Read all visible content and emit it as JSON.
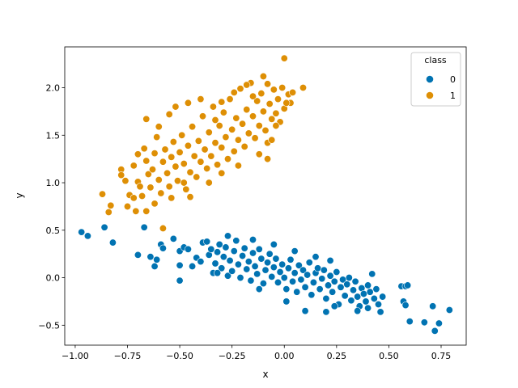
{
  "chart_data": {
    "type": "scatter",
    "title": "",
    "xlabel": "x",
    "ylabel": "y",
    "xlim": [
      -1.05,
      0.87
    ],
    "ylim": [
      -0.71,
      2.43
    ],
    "xticks": [
      -1.0,
      -0.75,
      -0.5,
      -0.25,
      0.0,
      0.25,
      0.5,
      0.75
    ],
    "xtick_labels": [
      "−1.00",
      "−0.75",
      "−0.50",
      "−0.25",
      "0.00",
      "0.25",
      "0.50",
      "0.75"
    ],
    "yticks": [
      -0.5,
      0.0,
      0.5,
      1.0,
      1.5,
      2.0
    ],
    "ytick_labels": [
      "−0.5",
      "0.0",
      "0.5",
      "1.0",
      "1.5",
      "2.0"
    ],
    "grid": false,
    "legend": {
      "title": "class",
      "placement": "upper right"
    },
    "series": [
      {
        "name": "0",
        "color": "#0173b2",
        "points": [
          [
            -0.97,
            0.48
          ],
          [
            -0.94,
            0.44
          ],
          [
            -0.82,
            0.37
          ],
          [
            -0.86,
            0.53
          ],
          [
            -0.67,
            0.53
          ],
          [
            -0.7,
            0.24
          ],
          [
            -0.64,
            0.22
          ],
          [
            -0.62,
            0.12
          ],
          [
            -0.61,
            0.19
          ],
          [
            -0.59,
            0.35
          ],
          [
            -0.58,
            0.31
          ],
          [
            -0.53,
            0.41
          ],
          [
            -0.5,
            0.28
          ],
          [
            -0.5,
            0.13
          ],
          [
            -0.5,
            -0.03
          ],
          [
            -0.48,
            0.32
          ],
          [
            -0.46,
            0.3
          ],
          [
            -0.44,
            0.12
          ],
          [
            -0.42,
            0.21
          ],
          [
            -0.4,
            0.17
          ],
          [
            -0.39,
            0.37
          ],
          [
            -0.37,
            0.38
          ],
          [
            -0.36,
            0.24
          ],
          [
            -0.35,
            0.3
          ],
          [
            -0.34,
            0.05
          ],
          [
            -0.33,
            0.15
          ],
          [
            -0.32,
            0.27
          ],
          [
            -0.31,
            0.35
          ],
          [
            -0.3,
            0.1
          ],
          [
            -0.29,
            0.22
          ],
          [
            -0.28,
            0.32
          ],
          [
            -0.27,
            0.44
          ],
          [
            -0.27,
            0.02
          ],
          [
            -0.26,
            0.18
          ],
          [
            -0.25,
            0.07
          ],
          [
            -0.24,
            0.28
          ],
          [
            -0.23,
            0.39
          ],
          [
            -0.22,
            0.14
          ],
          [
            -0.21,
            0.0
          ],
          [
            -0.2,
            0.23
          ],
          [
            -0.19,
            0.31
          ],
          [
            -0.18,
            0.09
          ],
          [
            -0.17,
            0.17
          ],
          [
            -0.16,
            -0.03
          ],
          [
            -0.15,
            0.26
          ],
          [
            -0.14,
            0.12
          ],
          [
            -0.13,
            0.04
          ],
          [
            -0.12,
            0.3
          ],
          [
            -0.11,
            0.2
          ],
          [
            -0.1,
            -0.06
          ],
          [
            -0.09,
            0.08
          ],
          [
            -0.08,
            0.16
          ],
          [
            -0.07,
            0.25
          ],
          [
            -0.06,
            0.01
          ],
          [
            -0.05,
            0.11
          ],
          [
            -0.04,
            0.2
          ],
          [
            -0.03,
            -0.05
          ],
          [
            -0.02,
            0.06
          ],
          [
            -0.01,
            0.14
          ],
          [
            0.0,
            0.0
          ],
          [
            0.01,
            -0.12
          ],
          [
            0.02,
            0.1
          ],
          [
            0.03,
            0.19
          ],
          [
            0.04,
            -0.04
          ],
          [
            0.05,
            0.05
          ],
          [
            0.06,
            -0.15
          ],
          [
            0.07,
            0.13
          ],
          [
            0.08,
            -0.02
          ],
          [
            0.09,
            0.08
          ],
          [
            0.1,
            -0.1
          ],
          [
            0.11,
            0.03
          ],
          [
            0.12,
            0.16
          ],
          [
            0.13,
            -0.18
          ],
          [
            0.14,
            -0.05
          ],
          [
            0.15,
            0.05
          ],
          [
            0.16,
            0.1
          ],
          [
            0.17,
            -0.12
          ],
          [
            0.18,
            -0.01
          ],
          [
            0.19,
            0.08
          ],
          [
            0.2,
            -0.22
          ],
          [
            0.21,
            -0.08
          ],
          [
            0.22,
            0.02
          ],
          [
            0.23,
            -0.15
          ],
          [
            0.24,
            -0.04
          ],
          [
            0.25,
            0.06
          ],
          [
            0.26,
            -0.28
          ],
          [
            0.27,
            -0.1
          ],
          [
            0.28,
            -0.02
          ],
          [
            0.29,
            -0.19
          ],
          [
            0.3,
            -0.07
          ],
          [
            0.31,
            0.0
          ],
          [
            0.32,
            -0.24
          ],
          [
            0.33,
            -0.13
          ],
          [
            0.34,
            -0.04
          ],
          [
            0.35,
            -0.2
          ],
          [
            0.36,
            -0.3
          ],
          [
            0.37,
            -0.11
          ],
          [
            0.38,
            -0.17
          ],
          [
            0.39,
            -0.25
          ],
          [
            0.4,
            -0.08
          ],
          [
            0.41,
            -0.15
          ],
          [
            0.42,
            0.04
          ],
          [
            0.43,
            -0.22
          ],
          [
            0.44,
            -0.12
          ],
          [
            0.45,
            -0.28
          ],
          [
            0.46,
            -0.36
          ],
          [
            0.47,
            -0.2
          ],
          [
            0.1,
            -0.35
          ],
          [
            0.2,
            -0.36
          ],
          [
            -0.12,
            -0.12
          ],
          [
            -0.15,
            0.4
          ],
          [
            -0.32,
            0.05
          ],
          [
            -0.05,
            0.35
          ],
          [
            0.05,
            0.28
          ],
          [
            0.15,
            0.22
          ],
          [
            0.22,
            0.18
          ],
          [
            0.24,
            -0.3
          ],
          [
            0.35,
            -0.35
          ],
          [
            0.4,
            -0.32
          ],
          [
            0.01,
            -0.25
          ],
          [
            0.56,
            -0.09
          ],
          [
            0.58,
            -0.09
          ],
          [
            0.59,
            -0.08
          ],
          [
            0.57,
            -0.25
          ],
          [
            0.6,
            -0.46
          ],
          [
            0.67,
            -0.47
          ],
          [
            0.71,
            -0.3
          ],
          [
            0.72,
            -0.56
          ],
          [
            0.74,
            -0.48
          ],
          [
            0.79,
            -0.34
          ],
          [
            0.58,
            -0.29
          ]
        ]
      },
      {
        "name": "1",
        "color": "#de8f05",
        "points": [
          [
            -0.87,
            0.88
          ],
          [
            -0.83,
            0.76
          ],
          [
            -0.84,
            0.69
          ],
          [
            -0.78,
            1.14
          ],
          [
            -0.78,
            1.08
          ],
          [
            -0.75,
            0.75
          ],
          [
            -0.74,
            0.87
          ],
          [
            -0.72,
            0.84
          ],
          [
            -0.71,
            0.7
          ],
          [
            -0.7,
            1.01
          ],
          [
            -0.69,
            0.96
          ],
          [
            -0.68,
            0.86
          ],
          [
            -0.67,
            1.36
          ],
          [
            -0.66,
            1.23
          ],
          [
            -0.66,
            0.7
          ],
          [
            -0.65,
            1.09
          ],
          [
            -0.64,
            0.95
          ],
          [
            -0.63,
            1.14
          ],
          [
            -0.62,
            1.31
          ],
          [
            -0.61,
            1.48
          ],
          [
            -0.6,
            1.03
          ],
          [
            -0.59,
            0.89
          ],
          [
            -0.58,
            1.22
          ],
          [
            -0.58,
            0.52
          ],
          [
            -0.57,
            1.35
          ],
          [
            -0.56,
            1.1
          ],
          [
            -0.55,
            0.96
          ],
          [
            -0.54,
            1.27
          ],
          [
            -0.53,
            1.43
          ],
          [
            -0.52,
            1.17
          ],
          [
            -0.51,
            1.02
          ],
          [
            -0.5,
            1.32
          ],
          [
            -0.49,
            1.5
          ],
          [
            -0.48,
            1.2
          ],
          [
            -0.47,
            0.93
          ],
          [
            -0.46,
            1.39
          ],
          [
            -0.45,
            1.11
          ],
          [
            -0.44,
            1.59
          ],
          [
            -0.43,
            1.28
          ],
          [
            -0.42,
            1.06
          ],
          [
            -0.41,
            1.44
          ],
          [
            -0.4,
            1.22
          ],
          [
            -0.39,
            1.7
          ],
          [
            -0.38,
            1.35
          ],
          [
            -0.37,
            1.15
          ],
          [
            -0.36,
            1.53
          ],
          [
            -0.35,
            1.28
          ],
          [
            -0.34,
            1.8
          ],
          [
            -0.33,
            1.42
          ],
          [
            -0.32,
            1.19
          ],
          [
            -0.31,
            1.6
          ],
          [
            -0.3,
            1.37
          ],
          [
            -0.29,
            1.74
          ],
          [
            -0.28,
            1.48
          ],
          [
            -0.27,
            1.25
          ],
          [
            -0.26,
            1.88
          ],
          [
            -0.25,
            1.56
          ],
          [
            -0.24,
            1.33
          ],
          [
            -0.23,
            1.68
          ],
          [
            -0.22,
            1.45
          ],
          [
            -0.21,
            1.99
          ],
          [
            -0.2,
            1.62
          ],
          [
            -0.19,
            1.38
          ],
          [
            -0.18,
            1.77
          ],
          [
            -0.17,
            1.52
          ],
          [
            -0.16,
            2.05
          ],
          [
            -0.15,
            1.7
          ],
          [
            -0.14,
            1.47
          ],
          [
            -0.13,
            1.86
          ],
          [
            -0.12,
            1.6
          ],
          [
            -0.11,
            1.94
          ],
          [
            -0.1,
            1.75
          ],
          [
            -0.09,
            1.55
          ],
          [
            -0.08,
            1.42
          ],
          [
            -0.07,
            1.83
          ],
          [
            -0.06,
            1.67
          ],
          [
            -0.05,
            1.98
          ],
          [
            -0.04,
            1.73
          ],
          [
            -0.03,
            1.88
          ],
          [
            -0.02,
            1.64
          ],
          [
            -0.01,
            2.0
          ],
          [
            0.0,
            1.78
          ],
          [
            0.02,
            1.93
          ],
          [
            0.03,
            1.84
          ],
          [
            0.04,
            1.95
          ],
          [
            -0.55,
            1.72
          ],
          [
            -0.52,
            1.8
          ],
          [
            -0.46,
            1.84
          ],
          [
            -0.4,
            1.88
          ],
          [
            -0.66,
            1.67
          ],
          [
            -0.6,
            1.59
          ],
          [
            -0.7,
            1.3
          ],
          [
            -0.72,
            1.18
          ],
          [
            -0.76,
            1.02
          ],
          [
            -0.62,
            0.78
          ],
          [
            -0.54,
            0.84
          ],
          [
            -0.45,
            0.85
          ],
          [
            -0.48,
            1.0
          ],
          [
            -0.36,
            1.0
          ],
          [
            -0.3,
            1.1
          ],
          [
            -0.22,
            1.18
          ],
          [
            -0.12,
            1.3
          ],
          [
            -0.08,
            1.25
          ],
          [
            -0.06,
            1.45
          ],
          [
            -0.04,
            1.6
          ],
          [
            -0.1,
            2.12
          ],
          [
            -0.18,
            2.03
          ],
          [
            -0.08,
            2.04
          ],
          [
            0.0,
            2.31
          ],
          [
            0.09,
            2.0
          ],
          [
            -0.24,
            1.95
          ],
          [
            -0.3,
            1.85
          ],
          [
            -0.33,
            1.66
          ],
          [
            -0.15,
            1.91
          ],
          [
            0.01,
            1.84
          ]
        ]
      }
    ]
  }
}
